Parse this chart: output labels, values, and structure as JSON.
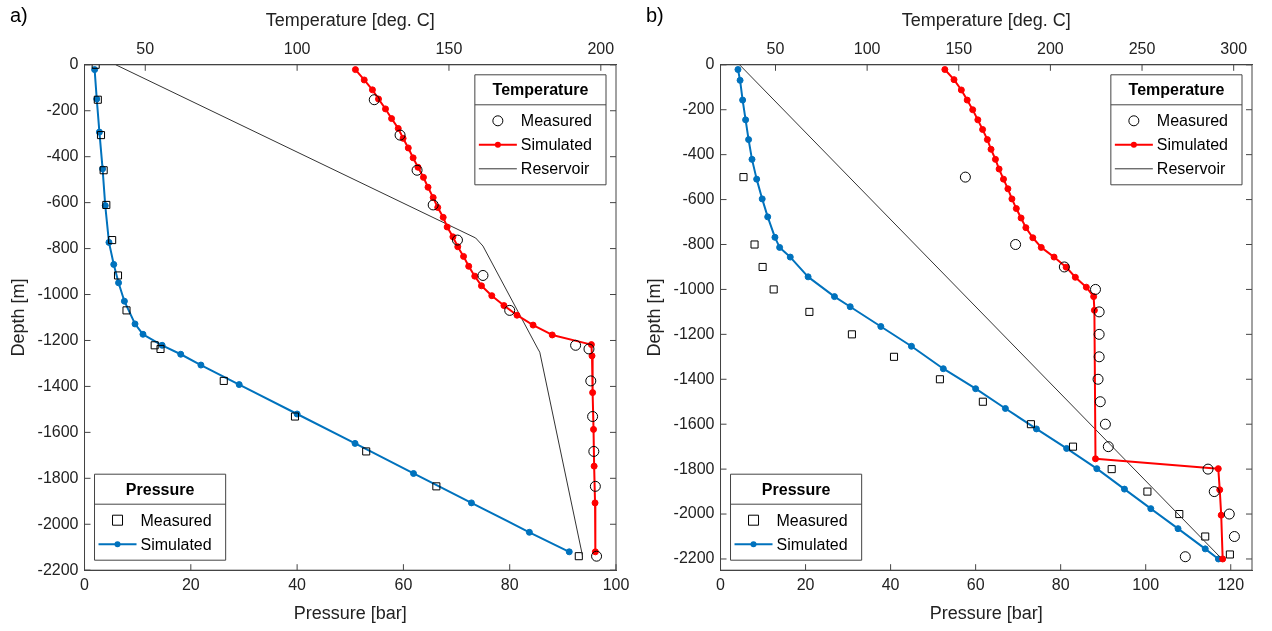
{
  "chart_data": [
    {
      "type": "line",
      "title": "a)",
      "xlabel": "Pressure [bar]",
      "x2label": "Temperature [deg. C]",
      "ylabel": "Depth [m]",
      "xlim": [
        0,
        100
      ],
      "xticks": [
        0,
        20,
        40,
        60,
        80,
        100
      ],
      "x2lim": [
        30,
        205
      ],
      "x2ticks": [
        50,
        100,
        150,
        200
      ],
      "ylim": [
        -2200,
        0
      ],
      "yticks": [
        -2200,
        -2000,
        -1800,
        -1600,
        -1400,
        -1200,
        -1000,
        -800,
        -600,
        -400,
        -200,
        0
      ],
      "grid": false,
      "legend": [
        "top right",
        "bottom left"
      ],
      "legend_title": [
        "Temperature",
        "Pressure"
      ],
      "series": [
        {
          "name": "Measured",
          "type": "scatter",
          "axis": "x2",
          "marker": "circle",
          "color": "#000000",
          "x": [
            125.4,
            133.9,
            139.5,
            144.8,
            152.8,
            161.2,
            170.0,
            191.7,
            196.1,
            196.7,
            197.3,
            197.7,
            198.2,
            198.6
          ],
          "values": [
            -152,
            -306,
            -459,
            -610,
            -763,
            -917,
            -1069,
            -1221,
            -1237,
            -1376,
            -1531,
            -1683,
            -1835,
            -2139
          ]
        },
        {
          "name": "Simulated",
          "axis": "x2",
          "marker": "circle",
          "color": "#ff0000",
          "x": [
            119.2,
            122.1,
            124.8,
            126.8,
            129.1,
            131.1,
            133.3,
            134.9,
            136.6,
            138.2,
            139.8,
            141.6,
            143.1,
            144.8,
            146.3,
            148.1,
            149.4,
            151.3,
            152.9,
            154.8,
            156.5,
            158.5,
            160.7,
            164.1,
            168.1,
            172.4,
            177.7,
            184.0,
            196.9,
            197.1,
            197.3,
            197.6,
            197.8,
            198.1,
            198.2
          ],
          "values": [
            -21,
            -66,
            -109,
            -149,
            -192,
            -234,
            -277,
            -320,
            -362,
            -405,
            -446,
            -490,
            -533,
            -578,
            -621,
            -664,
            -706,
            -749,
            -792,
            -834,
            -877,
            -920,
            -962,
            -1005,
            -1048,
            -1090,
            -1133,
            -1176,
            -1218,
            -1267,
            -1427,
            -1587,
            -1747,
            -1907,
            -2120
          ]
        },
        {
          "name": "Reservoir",
          "axis": "x2",
          "marker": "none",
          "color": "#333333",
          "x": [
            40.3,
            158.8,
            161.2,
            179.3,
            179.9,
            194.0
          ],
          "values": [
            0,
            -754,
            -789,
            -1237,
            -1251,
            -2139
          ]
        },
        {
          "name": "Measured",
          "type": "scatter",
          "marker": "square",
          "color": "#000000",
          "x": [
            2.1,
            2.5,
            3.1,
            3.6,
            4.1,
            5.2,
            6.3,
            7.9,
            13.2,
            14.3,
            26.2,
            39.6,
            53.0,
            66.2,
            93.0
          ],
          "values": [
            0,
            -152,
            -306,
            -459,
            -610,
            -763,
            -917,
            -1069,
            -1221,
            -1237,
            -1376,
            -1531,
            -1683,
            -1835,
            -2139
          ]
        },
        {
          "name": "Simulated",
          "marker": "circle",
          "color": "#0072bd",
          "x": [
            1.9,
            2.3,
            2.8,
            3.4,
            3.9,
            4.6,
            5.5,
            6.4,
            7.5,
            9.5,
            11.0,
            14.6,
            18.1,
            21.9,
            29.1,
            40.0,
            50.9,
            61.9,
            72.8,
            83.7,
            91.2
          ],
          "values": [
            -21,
            -149,
            -293,
            -453,
            -613,
            -773,
            -869,
            -949,
            -1029,
            -1128,
            -1173,
            -1221,
            -1260,
            -1307,
            -1392,
            -1520,
            -1648,
            -1779,
            -1907,
            -2035,
            -2120
          ]
        }
      ]
    },
    {
      "type": "line",
      "title": "b)",
      "xlabel": "Pressure [bar]",
      "x2label": "Temperature [deg. C]",
      "ylabel": "Depth [m]",
      "xlim": [
        0,
        125
      ],
      "xticks": [
        0,
        20,
        40,
        60,
        80,
        100,
        120
      ],
      "x2lim": [
        20,
        310
      ],
      "x2ticks": [
        50,
        100,
        150,
        200,
        250,
        300
      ],
      "ylim": [
        -2250,
        0
      ],
      "yticks": [
        -2200,
        -2000,
        -1800,
        -1600,
        -1400,
        -1200,
        -1000,
        -800,
        -600,
        -400,
        -200,
        0
      ],
      "grid": false,
      "legend": [
        "top right",
        "bottom left"
      ],
      "legend_title": [
        "Temperature",
        "Pressure"
      ],
      "series": [
        {
          "name": "Measured",
          "type": "scatter",
          "axis": "x2",
          "marker": "circle",
          "color": "#000000",
          "x": [
            153.6,
            181.0,
            207.6,
            224.6,
            226.6,
            226.6,
            226.6,
            226.0,
            227.2,
            230.0,
            231.6,
            286.0,
            289.4,
            297.6,
            300.4,
            273.6
          ],
          "values": [
            -500,
            -800,
            -900,
            -1000,
            -1100,
            -1200,
            -1300,
            -1400,
            -1500,
            -1600,
            -1700,
            -1800,
            -1900,
            -2000,
            -2100,
            -2190
          ]
        },
        {
          "name": "Simulated",
          "axis": "x2",
          "marker": "circle",
          "color": "#ff0000",
          "x": [
            142.4,
            147.4,
            151.4,
            154.6,
            157.6,
            160.4,
            163.0,
            165.6,
            167.6,
            170.0,
            172.0,
            174.4,
            176.8,
            179.0,
            181.4,
            184.0,
            186.6,
            190.4,
            195.0,
            202.0,
            208.6,
            213.6,
            219.6,
            223.6,
            224.0,
            224.6,
            291.6,
            292.4,
            293.2,
            294.0
          ],
          "values": [
            -21,
            -66,
            -112,
            -157,
            -200,
            -245,
            -288,
            -333,
            -376,
            -421,
            -464,
            -509,
            -552,
            -597,
            -640,
            -682,
            -725,
            -770,
            -813,
            -856,
            -901,
            -946,
            -990,
            -1032,
            -1093,
            -1754,
            -1798,
            -1892,
            -2005,
            -2200
          ]
        },
        {
          "name": "Reservoir",
          "axis": "x2",
          "marker": "none",
          "color": "#333333",
          "x": [
            30.4,
            293.6
          ],
          "values": [
            0,
            -2200
          ]
        },
        {
          "name": "Measured",
          "type": "scatter",
          "marker": "square",
          "color": "#000000",
          "x": [
            5.4,
            8.0,
            9.9,
            12.5,
            20.9,
            30.9,
            40.8,
            51.6,
            61.7,
            73.0,
            82.9,
            92.0,
            100.4,
            107.9,
            114.0,
            119.8
          ],
          "values": [
            -500,
            -800,
            -900,
            -1000,
            -1100,
            -1200,
            -1300,
            -1400,
            -1500,
            -1600,
            -1700,
            -1800,
            -1900,
            -2000,
            -2100,
            -2180
          ]
        },
        {
          "name": "Simulated",
          "marker": "circle",
          "color": "#0072bd",
          "x": [
            4.1,
            4.6,
            5.2,
            5.9,
            6.6,
            7.4,
            8.5,
            9.8,
            11.1,
            12.8,
            13.9,
            16.4,
            20.6,
            26.8,
            30.5,
            37.7,
            44.9,
            52.4,
            60.0,
            67.0,
            74.3,
            81.4,
            88.5,
            95.0,
            101.2,
            107.6,
            114.0,
            117.1
          ],
          "values": [
            -21,
            -69,
            -157,
            -245,
            -333,
            -421,
            -509,
            -597,
            -677,
            -768,
            -813,
            -856,
            -944,
            -1032,
            -1077,
            -1165,
            -1253,
            -1353,
            -1442,
            -1530,
            -1621,
            -1708,
            -1798,
            -1889,
            -1976,
            -2065,
            -2155,
            -2200
          ]
        }
      ]
    }
  ]
}
